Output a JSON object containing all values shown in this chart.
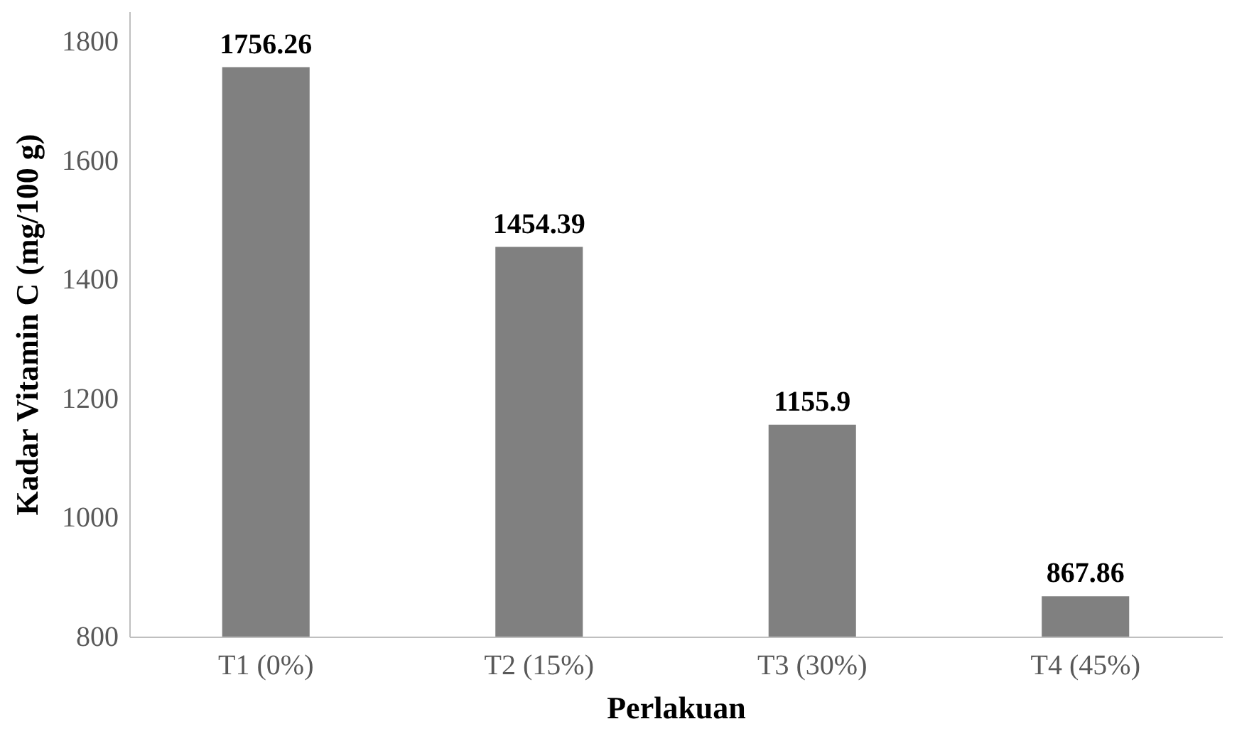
{
  "chart_data": {
    "type": "bar",
    "xlabel": "Perlakuan",
    "ylabel": "Kadar Vitamin C (mg/100 g)",
    "categories": [
      "T1 (0%)",
      "T2 (15%)",
      "T3 (30%)",
      "T4 (45%)"
    ],
    "values": [
      1756.26,
      1454.39,
      1155.9,
      867.86
    ],
    "color": "#808080",
    "ylim": [
      800,
      1850
    ],
    "yticks": [
      800,
      1000,
      1200,
      1400,
      1600,
      1800
    ],
    "grid": false,
    "data_labels": true
  }
}
